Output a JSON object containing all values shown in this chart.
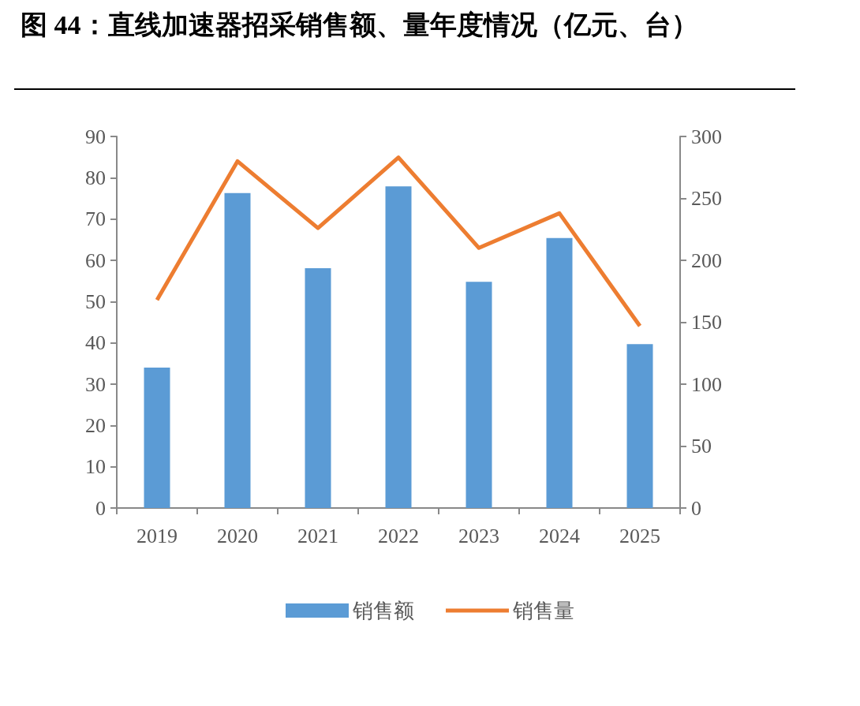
{
  "chart_data": {
    "type": "bar",
    "title": "图 44：直线加速器招采销售额、量年度情况（亿元、台）",
    "categories": [
      "2019",
      "2020",
      "2021",
      "2022",
      "2023",
      "2024",
      "2025"
    ],
    "series": [
      {
        "name": "销售额",
        "color": "#5b9bd5",
        "values": [
          34.0,
          76.3,
          58.1,
          77.9,
          54.8,
          65.4,
          39.7
        ]
      },
      {
        "name": "销售量",
        "type": "line",
        "axis": "y2",
        "color": "#ed7d31",
        "values": [
          168,
          280,
          226,
          283,
          210,
          238,
          147
        ]
      }
    ],
    "ylim": [
      0,
      90
    ],
    "yticks": [
      0,
      10,
      20,
      30,
      40,
      50,
      60,
      70,
      80,
      90
    ],
    "y2lim": [
      0,
      300
    ],
    "y2ticks": [
      0,
      50,
      100,
      150,
      200,
      250,
      300
    ],
    "grid": false,
    "legend": "bottom",
    "marker": "none",
    "line_style": "solid"
  }
}
